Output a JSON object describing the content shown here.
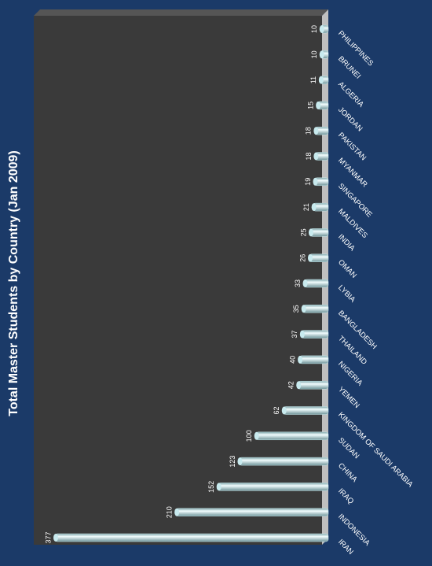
{
  "chart_data": {
    "type": "bar",
    "orientation": "horizontal",
    "title": "Total Master Students by Country  (Jan 2009)",
    "categories": [
      "PHILIPPINES",
      "BRUNEI",
      "ALGERIA",
      "JORDAN",
      "PAKISTAN",
      "MYANMAR",
      "SINGAPORE",
      "MALDIVES",
      "INDIA",
      "OMAN",
      "LYBIA",
      "BANGLADESH",
      "THAILAND",
      "NIGERIA",
      "YEMEN",
      "KINGDOM OF SAUDI ARABIA",
      "SUDAN",
      "CHINA",
      "IRAQ",
      "INDONESIA",
      "IRAN"
    ],
    "values": [
      10,
      10,
      11,
      15,
      18,
      18,
      19,
      21,
      25,
      26,
      33,
      35,
      37,
      40,
      42,
      62,
      100,
      123,
      152,
      210,
      377
    ],
    "color": "#c8eaee"
  }
}
